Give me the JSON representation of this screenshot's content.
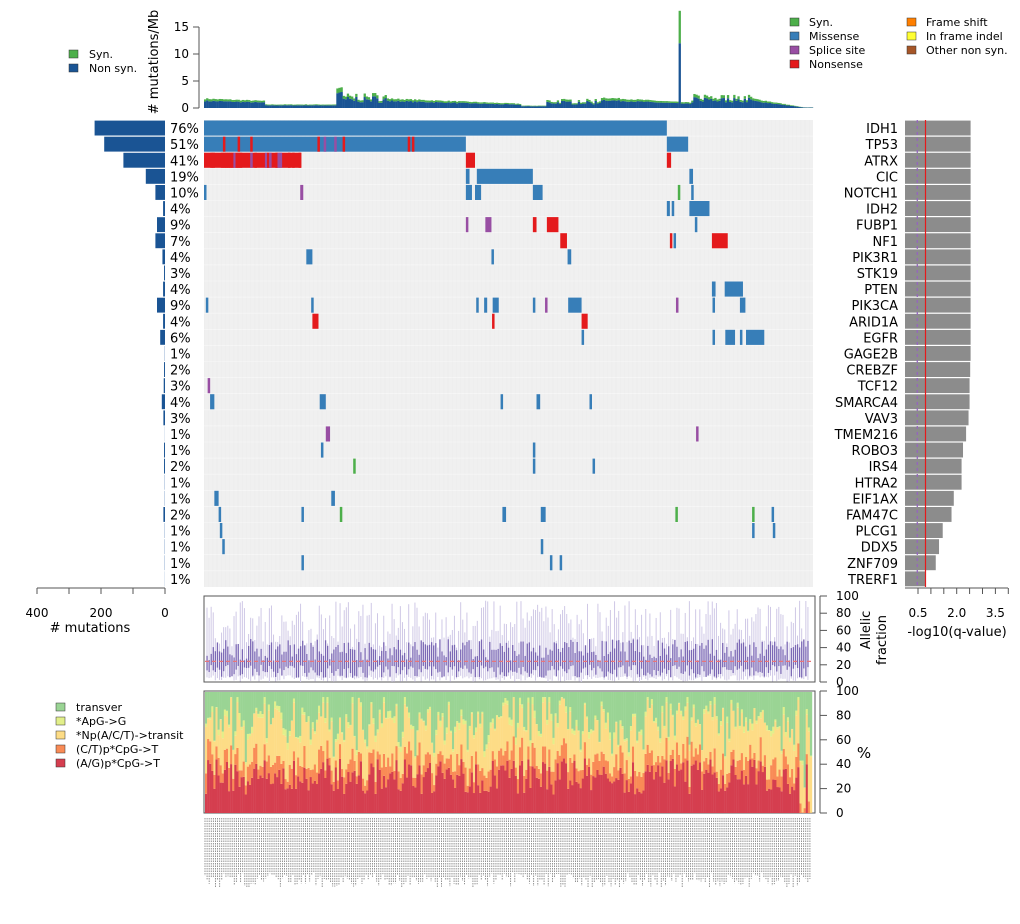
{
  "chart_data": [
    {
      "id": "tmb",
      "type": "bar",
      "stacked": true,
      "ylabel": "# mutations/Mb",
      "ylim": [
        0,
        18
      ],
      "yticks": [
        0,
        5,
        10,
        15
      ],
      "legend": [
        {
          "label": "Syn.",
          "color": "#4daf4a"
        },
        {
          "label": "Non syn.",
          "color": "#1a5494"
        }
      ],
      "legend_position": "left",
      "outlier": {
        "sample_fraction": 0.78,
        "nonsyn": 12,
        "syn": 6
      },
      "profile_note": "per-sample stacked bars, values mostly 0.5-4 mutations/Mb"
    },
    {
      "id": "oncoprint",
      "type": "heatmap",
      "n_samples": 290,
      "background_color": "#f0f0f0",
      "genes": [
        "IDH1",
        "TP53",
        "ATRX",
        "CIC",
        "NOTCH1",
        "IDH2",
        "FUBP1",
        "NF1",
        "PIK3R1",
        "STK19",
        "PTEN",
        "PIK3CA",
        "ARID1A",
        "EGFR",
        "GAGE2B",
        "CREBZF",
        "TCF12",
        "SMARCA4",
        "VAV3",
        "TMEM216",
        "ROBO3",
        "IRS4",
        "HTRA2",
        "EIF1AX",
        "FAM47C",
        "PLCG1",
        "DDX5",
        "ZNF709",
        "TRERF1"
      ],
      "percentages": [
        "76%",
        "51%",
        "41%",
        "19%",
        "10%",
        "4%",
        "9%",
        "7%",
        "4%",
        "3%",
        "4%",
        "9%",
        "4%",
        "6%",
        "1%",
        "2%",
        "3%",
        "4%",
        "3%",
        "1%",
        "1%",
        "2%",
        "1%",
        "1%",
        "2%",
        "1%",
        "1%",
        "1%",
        "1%"
      ],
      "mutation_counts": [
        220,
        190,
        130,
        60,
        30,
        6,
        25,
        30,
        8,
        3,
        6,
        25,
        6,
        15,
        2,
        3,
        4,
        10,
        5,
        1,
        3,
        3,
        2,
        2,
        5,
        2,
        2,
        2,
        1
      ],
      "legend": [
        {
          "label": "Syn.",
          "color": "#4daf4a"
        },
        {
          "label": "Missense",
          "color": "#377eb8"
        },
        {
          "label": "Splice site",
          "color": "#984ea3"
        },
        {
          "label": "Nonsense",
          "color": "#e41a1c"
        },
        {
          "label": "Frame shift",
          "color": "#ff7f00"
        },
        {
          "label": "In frame indel",
          "color": "#ffff33"
        },
        {
          "label": "Other non syn.",
          "color": "#a65628"
        }
      ],
      "legend_position": "top-right",
      "segments": [
        {
          "gene": 0,
          "from": 0,
          "to": 0.76,
          "type": "Missense"
        },
        {
          "gene": 1,
          "from": 0,
          "to": 0.43,
          "type": "Missense"
        },
        {
          "gene": 1,
          "from": 0.76,
          "to": 0.795,
          "type": "Missense"
        },
        {
          "gene": 2,
          "from": 0,
          "to": 0.16,
          "type": "Nonsense"
        },
        {
          "gene": 2,
          "from": 0.43,
          "to": 0.445,
          "type": "Nonsense"
        },
        {
          "gene": 2,
          "from": 0.76,
          "to": 0.767,
          "type": "Nonsense"
        },
        {
          "gene": 3,
          "from": 0.43,
          "to": 0.436,
          "type": "Missense"
        },
        {
          "gene": 3,
          "from": 0.448,
          "to": 0.54,
          "type": "Missense"
        },
        {
          "gene": 3,
          "from": 0.797,
          "to": 0.803,
          "type": "Missense"
        },
        {
          "gene": 4,
          "from": 0,
          "to": 0.004,
          "type": "Missense"
        },
        {
          "gene": 4,
          "from": 0.158,
          "to": 0.163,
          "type": "Splice site"
        },
        {
          "gene": 4,
          "from": 0.43,
          "to": 0.44,
          "type": "Missense"
        },
        {
          "gene": 4,
          "from": 0.445,
          "to": 0.455,
          "type": "Missense"
        },
        {
          "gene": 4,
          "from": 0.54,
          "to": 0.556,
          "type": "Missense"
        },
        {
          "gene": 4,
          "from": 0.778,
          "to": 0.782,
          "type": "Syn."
        },
        {
          "gene": 4,
          "from": 0.8,
          "to": 0.804,
          "type": "Missense"
        },
        {
          "gene": 5,
          "from": 0.76,
          "to": 0.765,
          "type": "Missense"
        },
        {
          "gene": 5,
          "from": 0.768,
          "to": 0.772,
          "type": "Missense"
        },
        {
          "gene": 5,
          "from": 0.797,
          "to": 0.83,
          "type": "Missense"
        },
        {
          "gene": 6,
          "from": 0.43,
          "to": 0.434,
          "type": "Splice site"
        },
        {
          "gene": 6,
          "from": 0.462,
          "to": 0.472,
          "type": "Splice site"
        },
        {
          "gene": 6,
          "from": 0.54,
          "to": 0.546,
          "type": "Nonsense"
        },
        {
          "gene": 6,
          "from": 0.563,
          "to": 0.582,
          "type": "Nonsense"
        },
        {
          "gene": 6,
          "from": 0.806,
          "to": 0.81,
          "type": "Missense"
        },
        {
          "gene": 7,
          "from": 0.585,
          "to": 0.596,
          "type": "Nonsense"
        },
        {
          "gene": 7,
          "from": 0.765,
          "to": 0.768,
          "type": "Nonsense"
        },
        {
          "gene": 7,
          "from": 0.771,
          "to": 0.774,
          "type": "Missense"
        },
        {
          "gene": 7,
          "from": 0.834,
          "to": 0.86,
          "type": "Nonsense"
        },
        {
          "gene": 8,
          "from": 0.168,
          "to": 0.178,
          "type": "Missense"
        },
        {
          "gene": 8,
          "from": 0.472,
          "to": 0.476,
          "type": "Missense"
        },
        {
          "gene": 8,
          "from": 0.597,
          "to": 0.603,
          "type": "Missense"
        },
        {
          "gene": 10,
          "from": 0.834,
          "to": 0.84,
          "type": "Missense"
        },
        {
          "gene": 10,
          "from": 0.855,
          "to": 0.885,
          "type": "Missense"
        },
        {
          "gene": 11,
          "from": 0.003,
          "to": 0.006,
          "type": "Missense"
        },
        {
          "gene": 11,
          "from": 0.176,
          "to": 0.18,
          "type": "Missense"
        },
        {
          "gene": 11,
          "from": 0.447,
          "to": 0.45,
          "type": "Missense"
        },
        {
          "gene": 11,
          "from": 0.46,
          "to": 0.465,
          "type": "Missense"
        },
        {
          "gene": 11,
          "from": 0.474,
          "to": 0.484,
          "type": "Missense"
        },
        {
          "gene": 11,
          "from": 0.54,
          "to": 0.543,
          "type": "Missense"
        },
        {
          "gene": 11,
          "from": 0.56,
          "to": 0.563,
          "type": "Splice site"
        },
        {
          "gene": 11,
          "from": 0.598,
          "to": 0.62,
          "type": "Missense"
        },
        {
          "gene": 11,
          "from": 0.775,
          "to": 0.778,
          "type": "Splice site"
        },
        {
          "gene": 11,
          "from": 0.835,
          "to": 0.838,
          "type": "Missense"
        },
        {
          "gene": 11,
          "from": 0.88,
          "to": 0.889,
          "type": "Missense"
        },
        {
          "gene": 12,
          "from": 0.178,
          "to": 0.188,
          "type": "Nonsense"
        },
        {
          "gene": 12,
          "from": 0.473,
          "to": 0.476,
          "type": "Nonsense"
        },
        {
          "gene": 12,
          "from": 0.62,
          "to": 0.63,
          "type": "Nonsense"
        },
        {
          "gene": 13,
          "from": 0.62,
          "to": 0.623,
          "type": "Missense"
        },
        {
          "gene": 13,
          "from": 0.835,
          "to": 0.838,
          "type": "Missense"
        },
        {
          "gene": 13,
          "from": 0.856,
          "to": 0.872,
          "type": "Missense"
        },
        {
          "gene": 13,
          "from": 0.88,
          "to": 0.883,
          "type": "Missense"
        },
        {
          "gene": 13,
          "from": 0.89,
          "to": 0.92,
          "type": "Missense"
        },
        {
          "gene": 16,
          "from": 0.006,
          "to": 0.01,
          "type": "Splice site"
        },
        {
          "gene": 17,
          "from": 0.01,
          "to": 0.017,
          "type": "Missense"
        },
        {
          "gene": 17,
          "from": 0.19,
          "to": 0.2,
          "type": "Missense"
        },
        {
          "gene": 17,
          "from": 0.487,
          "to": 0.49,
          "type": "Missense"
        },
        {
          "gene": 17,
          "from": 0.546,
          "to": 0.552,
          "type": "Missense"
        },
        {
          "gene": 17,
          "from": 0.633,
          "to": 0.636,
          "type": "Missense"
        },
        {
          "gene": 19,
          "from": 0.2,
          "to": 0.207,
          "type": "Splice site"
        },
        {
          "gene": 19,
          "from": 0.808,
          "to": 0.811,
          "type": "Splice site"
        },
        {
          "gene": 20,
          "from": 0.192,
          "to": 0.195,
          "type": "Missense"
        },
        {
          "gene": 20,
          "from": 0.54,
          "to": 0.543,
          "type": "Missense"
        },
        {
          "gene": 21,
          "from": 0.245,
          "to": 0.248,
          "type": "Syn."
        },
        {
          "gene": 21,
          "from": 0.54,
          "to": 0.543,
          "type": "Missense"
        },
        {
          "gene": 21,
          "from": 0.638,
          "to": 0.641,
          "type": "Missense"
        },
        {
          "gene": 23,
          "from": 0.017,
          "to": 0.024,
          "type": "Missense"
        },
        {
          "gene": 23,
          "from": 0.209,
          "to": 0.215,
          "type": "Missense"
        },
        {
          "gene": 24,
          "from": 0.024,
          "to": 0.027,
          "type": "Missense"
        },
        {
          "gene": 24,
          "from": 0.16,
          "to": 0.163,
          "type": "Missense"
        },
        {
          "gene": 24,
          "from": 0.223,
          "to": 0.226,
          "type": "Syn."
        },
        {
          "gene": 24,
          "from": 0.49,
          "to": 0.496,
          "type": "Missense"
        },
        {
          "gene": 24,
          "from": 0.553,
          "to": 0.561,
          "type": "Missense"
        },
        {
          "gene": 24,
          "from": 0.774,
          "to": 0.777,
          "type": "Syn."
        },
        {
          "gene": 24,
          "from": 0.9,
          "to": 0.903,
          "type": "Syn."
        },
        {
          "gene": 24,
          "from": 0.932,
          "to": 0.935,
          "type": "Missense"
        },
        {
          "gene": 25,
          "from": 0.026,
          "to": 0.029,
          "type": "Missense"
        },
        {
          "gene": 25,
          "from": 0.9,
          "to": 0.903,
          "type": "Missense"
        },
        {
          "gene": 25,
          "from": 0.934,
          "to": 0.937,
          "type": "Missense"
        },
        {
          "gene": 26,
          "from": 0.03,
          "to": 0.033,
          "type": "Missense"
        },
        {
          "gene": 26,
          "from": 0.553,
          "to": 0.556,
          "type": "Missense"
        },
        {
          "gene": 27,
          "from": 0.16,
          "to": 0.163,
          "type": "Missense"
        },
        {
          "gene": 27,
          "from": 0.568,
          "to": 0.571,
          "type": "Missense"
        },
        {
          "gene": 27,
          "from": 0.584,
          "to": 0.588,
          "type": "Missense"
        }
      ]
    },
    {
      "id": "mutation-counts",
      "type": "bar",
      "orientation": "horizontal",
      "xlabel": "# mutations",
      "xlim": [
        400,
        0
      ],
      "xticks": [
        "400",
        "200",
        "0"
      ],
      "xtick_values": [
        400,
        300,
        200,
        100,
        0
      ],
      "bar_color": "#1a5494",
      "values_from": "oncoprint.mutation_counts"
    },
    {
      "id": "qvalue",
      "type": "bar",
      "orientation": "horizontal",
      "xlabel": "-log10(q-value)",
      "xticks": [
        "0.5",
        "2.0",
        "3.5"
      ],
      "bar_color": "#8c8c8c",
      "threshold_solid": {
        "value": 1.0,
        "color": "#e41a1c"
      },
      "threshold_dashed": {
        "value": 0.6,
        "color": "#9467bd"
      },
      "xlim": [
        0,
        4.0
      ],
      "values": [
        3.2,
        3.2,
        3.2,
        3.2,
        3.2,
        3.2,
        3.2,
        3.2,
        3.2,
        3.2,
        3.2,
        3.2,
        3.2,
        3.2,
        3.2,
        3.18,
        3.15,
        3.15,
        3.1,
        2.98,
        2.83,
        2.76,
        2.76,
        2.38,
        2.27,
        1.84,
        1.66,
        1.5,
        1.0
      ]
    },
    {
      "id": "allelic-fraction",
      "type": "box",
      "ylabel": "Allelic\nfraction",
      "ylim": [
        0,
        100
      ],
      "yticks": [
        0,
        20,
        40,
        60,
        80,
        100
      ],
      "median_line": {
        "value": 24,
        "color": "#e8757a"
      },
      "box_color": "#7b68b5",
      "whisker_color": "#cfc8e6"
    },
    {
      "id": "spectrum",
      "type": "bar",
      "stacked": true,
      "ylabel": "%",
      "ylim": [
        0,
        100
      ],
      "yticks": [
        0,
        20,
        40,
        60,
        80,
        100
      ],
      "legend": [
        {
          "label": "transver",
          "color": "#9ad494"
        },
        {
          "label": "*ApG->G",
          "color": "#e2ef8a"
        },
        {
          "label": "*Np(A/C/T)->transit",
          "color": "#fddc86"
        },
        {
          "label": "(C/T)p*CpG->T",
          "color": "#f98b56"
        },
        {
          "label": "(A/G)p*CpG->T",
          "color": "#d53e4f"
        }
      ],
      "legend_position": "left",
      "typical_fractions": {
        "(A/G)p*CpG->T": 30,
        "(C/T)p*CpG->T": 12,
        "*Np(A/C/T)->transit": 25,
        "*ApG->G": 3,
        "transver": 30
      }
    }
  ]
}
